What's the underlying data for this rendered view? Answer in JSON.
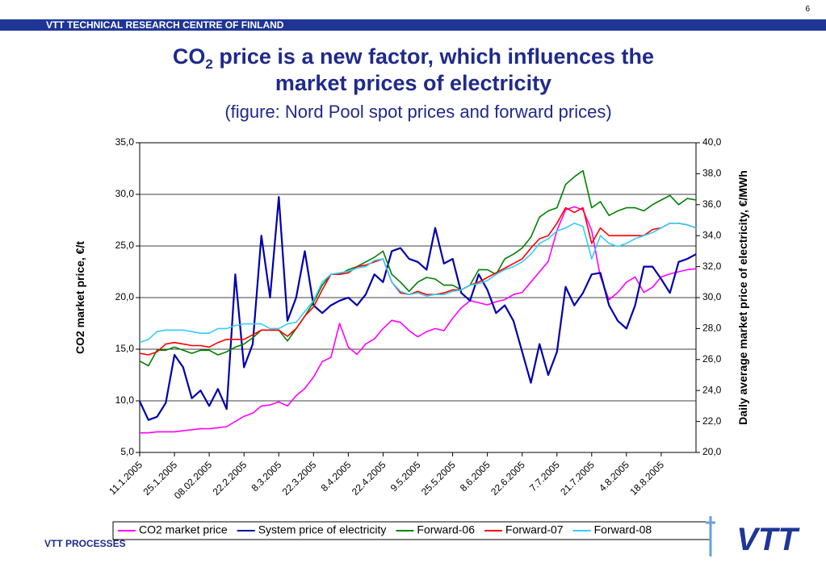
{
  "header": "VTT TECHNICAL RESEARCH CENTRE OF FINLAND",
  "page_number": "6",
  "title": {
    "prefix": "CO",
    "subscript": "2",
    "line1_rest": " price is a new factor, which influences the",
    "line2": "market prices of electricity"
  },
  "subtitle": "(figure: Nord Pool spot prices and forward prices)",
  "footer": "VTT PROCESSES",
  "logo": "VTT",
  "chart_data": {
    "type": "line",
    "ylabel": "CO2 market price, €/t",
    "y2label": "Daily average market price of electricity, €/MWh",
    "categories": [
      "11.1.2005",
      null,
      null,
      null,
      "25.1.2005",
      null,
      null,
      null,
      "08.02.2005",
      null,
      null,
      null,
      "22.2.2005",
      null,
      null,
      null,
      "8.3.2005",
      null,
      null,
      null,
      "22.3.2005",
      null,
      null,
      null,
      "8.4.2005",
      null,
      null,
      null,
      "22.4.2005",
      null,
      null,
      null,
      "9.5.2005",
      null,
      null,
      null,
      "25.5.2005",
      null,
      null,
      null,
      "8.6.2005",
      null,
      null,
      null,
      "22.6.2005",
      null,
      null,
      null,
      "7.7.2005",
      null,
      null,
      null,
      "21.7.2005",
      null,
      null,
      null,
      "4.8.2005",
      null,
      null,
      null,
      "18.8.2005",
      null,
      null,
      null,
      null
    ],
    "ylim": [
      5,
      35
    ],
    "yticks": [
      {
        "value": 5,
        "label": "5,0"
      },
      {
        "value": 10,
        "label": "10,0"
      },
      {
        "value": 15,
        "label": "15,0"
      },
      {
        "value": 20,
        "label": "20,0"
      },
      {
        "value": 25,
        "label": "25,0"
      },
      {
        "value": 30,
        "label": "30,0"
      },
      {
        "value": 35,
        "label": "35,0"
      }
    ],
    "y2lim": [
      20,
      40
    ],
    "y2ticks": [
      {
        "value": 20,
        "label": "20,0"
      },
      {
        "value": 22,
        "label": "22,0"
      },
      {
        "value": 24,
        "label": "24,0"
      },
      {
        "value": 26,
        "label": "26,0"
      },
      {
        "value": 28,
        "label": "28,0"
      },
      {
        "value": 30,
        "label": "30,0"
      },
      {
        "value": 32,
        "label": "32,0"
      },
      {
        "value": 34,
        "label": "34,0"
      },
      {
        "value": 36,
        "label": "36,0"
      },
      {
        "value": 38,
        "label": "38,0"
      },
      {
        "value": 40,
        "label": "40,0"
      }
    ],
    "grid": true,
    "legend": "bottom",
    "series": [
      {
        "name": "CO2 market price",
        "color": "#ff00ff",
        "axis": "y",
        "values": [
          6.9,
          6.9,
          7.0,
          7.0,
          7.0,
          7.1,
          7.2,
          7.3,
          7.3,
          7.4,
          7.5,
          8.0,
          8.5,
          8.8,
          9.5,
          9.6,
          9.9,
          9.5,
          10.5,
          11.2,
          12.3,
          13.8,
          14.2,
          17.5,
          15.2,
          14.5,
          15.5,
          16.0,
          17.0,
          17.8,
          17.6,
          16.8,
          16.2,
          16.7,
          17.0,
          16.8,
          18.0,
          19.0,
          19.7,
          19.5,
          19.3,
          19.6,
          19.8,
          20.3,
          20.5,
          21.5,
          22.5,
          23.5,
          26.5,
          28.5,
          28.8,
          28.5,
          26.5,
          22.0,
          19.8,
          20.5,
          21.5,
          22.0,
          20.5,
          21.0,
          22.0,
          22.3,
          22.5,
          22.7,
          22.8
        ]
      },
      {
        "name": "System price of electricity",
        "color": "#0000aa",
        "axis": "y2",
        "values": [
          23.3,
          22.1,
          22.3,
          23.2,
          26.3,
          25.5,
          23.5,
          24.0,
          23.0,
          24.1,
          22.8,
          31.5,
          25.5,
          27.0,
          34.0,
          30.0,
          36.5,
          28.5,
          30.0,
          33.0,
          29.5,
          29.0,
          29.5,
          29.8,
          30.0,
          29.5,
          30.2,
          31.5,
          31.0,
          33.0,
          33.2,
          32.5,
          32.3,
          31.8,
          34.5,
          32.2,
          32.5,
          30.3,
          29.8,
          31.5,
          30.5,
          29.0,
          29.5,
          28.5,
          26.5,
          24.5,
          27.0,
          25.0,
          26.5,
          30.7,
          29.5,
          30.3,
          31.5,
          31.6,
          29.5,
          28.5,
          28.0,
          29.5,
          32.0,
          32.0,
          31.2,
          30.3,
          32.3,
          32.5,
          32.8
        ]
      },
      {
        "name": "Forward-06",
        "color": "#008000",
        "axis": "y2",
        "values": [
          25.9,
          25.6,
          26.6,
          26.6,
          26.8,
          26.6,
          26.4,
          26.6,
          26.6,
          26.3,
          26.5,
          26.8,
          27.0,
          27.4,
          27.9,
          27.9,
          27.9,
          27.2,
          28.0,
          28.8,
          29.7,
          30.8,
          31.5,
          31.5,
          31.8,
          32.0,
          32.3,
          32.6,
          33.0,
          31.5,
          31.0,
          30.4,
          31.0,
          31.3,
          31.2,
          30.8,
          30.8,
          30.5,
          30.8,
          31.8,
          31.8,
          31.5,
          32.5,
          32.8,
          33.2,
          33.9,
          35.2,
          35.6,
          35.8,
          37.3,
          37.8,
          38.2,
          35.8,
          36.2,
          35.3,
          35.6,
          35.8,
          35.8,
          35.6,
          36.0,
          36.3,
          36.6,
          36.0,
          36.4,
          36.3
        ]
      },
      {
        "name": "Forward-07",
        "color": "#ff0000",
        "axis": "y2",
        "values": [
          26.4,
          26.3,
          26.5,
          27.0,
          27.1,
          27.0,
          26.9,
          26.9,
          26.8,
          27.1,
          27.3,
          27.3,
          27.3,
          27.6,
          27.9,
          27.9,
          27.9,
          27.5,
          28.0,
          28.8,
          29.4,
          30.5,
          31.5,
          31.5,
          31.6,
          32.0,
          32.1,
          32.3,
          32.5,
          31.0,
          30.3,
          30.2,
          30.4,
          30.2,
          30.2,
          30.3,
          30.5,
          30.5,
          30.8,
          31.0,
          31.3,
          31.6,
          31.9,
          32.2,
          32.5,
          33.2,
          33.8,
          34.0,
          34.8,
          35.8,
          35.5,
          35.8,
          33.5,
          34.5,
          34.0,
          34.0,
          34.0,
          34.0,
          34.0,
          34.4,
          34.5,
          34.8,
          34.8,
          34.7,
          34.5
        ]
      },
      {
        "name": "Forward-08",
        "color": "#33ccff",
        "axis": "y2",
        "values": [
          27.1,
          27.3,
          27.8,
          27.9,
          27.9,
          27.9,
          27.8,
          27.7,
          27.7,
          28.0,
          28.0,
          28.2,
          28.3,
          28.3,
          28.3,
          28.0,
          28.0,
          28.3,
          28.4,
          29.1,
          29.8,
          31.0,
          31.5,
          31.6,
          31.7,
          31.9,
          32.0,
          32.4,
          32.5,
          31.0,
          30.4,
          30.2,
          30.3,
          30.1,
          30.2,
          30.2,
          30.4,
          30.5,
          30.8,
          30.9,
          31.1,
          31.5,
          31.8,
          32.0,
          32.3,
          32.8,
          33.5,
          33.8,
          34.3,
          34.5,
          34.8,
          34.6,
          32.5,
          34.0,
          33.5,
          33.3,
          33.5,
          33.8,
          34.0,
          34.2,
          34.5,
          34.8,
          34.8,
          34.7,
          34.5
        ]
      }
    ]
  }
}
